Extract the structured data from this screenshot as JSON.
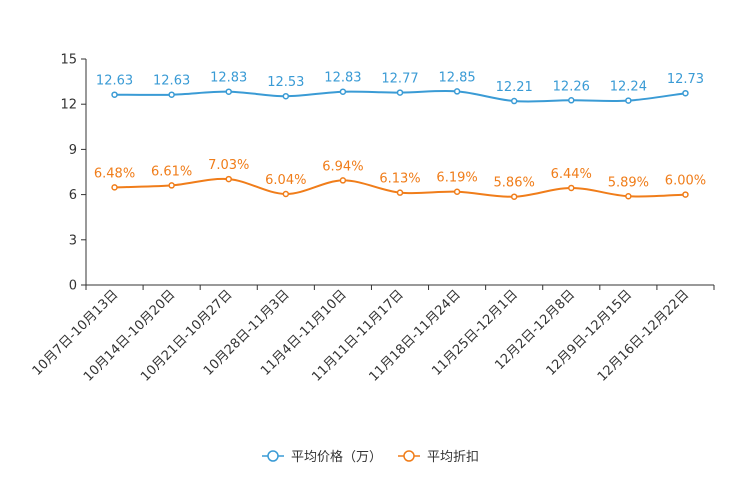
{
  "chart_data": {
    "type": "line",
    "title": "",
    "xlabel": "",
    "ylabel": "",
    "ylim": [
      0,
      15
    ],
    "yticks": [
      0,
      3,
      6,
      9,
      12,
      15
    ],
    "grid": false,
    "legend_position": "bottom-center",
    "categories": [
      "10月7日-10月13日",
      "10月14日-10月20日",
      "10月21日-10月27日",
      "10月28日-11月3日",
      "11月4日-11月10日",
      "11月11日-11月17日",
      "11月18日-11月24日",
      "11月25日-12月1日",
      "12月2日-12月8日",
      "12月9日-12月15日",
      "12月16日-12月22日"
    ],
    "series": [
      {
        "name": "平均价格（万）",
        "color": "#3a9bd5",
        "values": [
          12.63,
          12.63,
          12.83,
          12.53,
          12.83,
          12.77,
          12.85,
          12.21,
          12.26,
          12.24,
          12.73
        ],
        "labels": [
          "12.63",
          "12.63",
          "12.83",
          "12.53",
          "12.83",
          "12.77",
          "12.85",
          "12.21",
          "12.26",
          "12.24",
          "12.73"
        ]
      },
      {
        "name": "平均折扣",
        "color": "#f07d1a",
        "values": [
          6.48,
          6.61,
          7.03,
          6.04,
          6.94,
          6.13,
          6.19,
          5.86,
          6.44,
          5.89,
          6.0
        ],
        "labels": [
          "6.48%",
          "6.61%",
          "7.03%",
          "6.04%",
          "6.94%",
          "6.13%",
          "6.19%",
          "5.86%",
          "6.44%",
          "5.89%",
          "6.00%"
        ]
      }
    ]
  }
}
